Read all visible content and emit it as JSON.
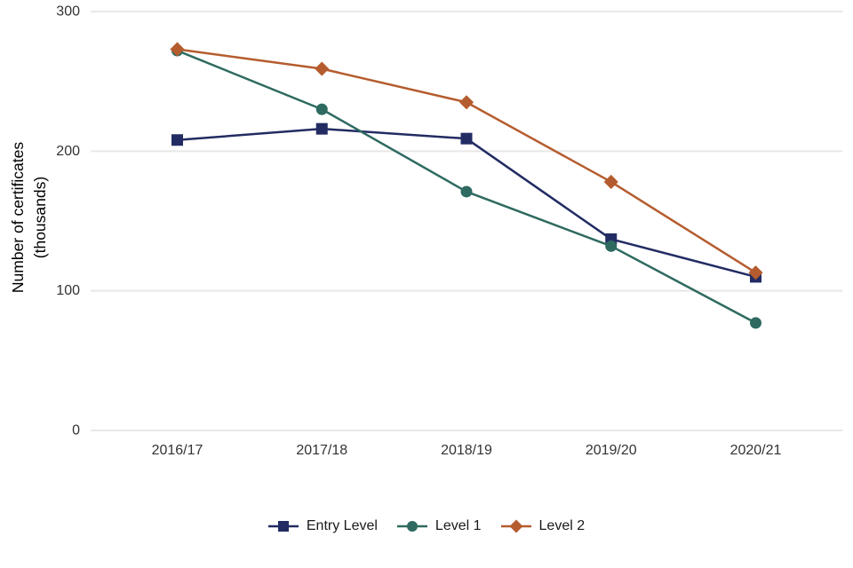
{
  "chart_data": {
    "type": "line",
    "title": "",
    "xlabel": "",
    "ylabel_line1": "Number of certificates",
    "ylabel_line2": "(thousands)",
    "categories": [
      "2016/17",
      "2017/18",
      "2018/19",
      "2019/20",
      "2020/21"
    ],
    "series": [
      {
        "name": "Entry Level",
        "marker": "square",
        "color": "#222c63",
        "values": [
          208,
          216,
          209,
          137,
          110
        ]
      },
      {
        "name": "Level 1",
        "marker": "circle",
        "color": "#2e6a60",
        "values": [
          272,
          230,
          171,
          132,
          77
        ]
      },
      {
        "name": "Level 2",
        "marker": "diamond",
        "color": "#b55c2e",
        "values": [
          273,
          259,
          235,
          178,
          113
        ]
      }
    ],
    "ylim": [
      0,
      300
    ],
    "yticks": [
      0,
      100,
      200,
      300
    ],
    "grid": "horizontal-only",
    "grid_color": "#e8e8e8",
    "tick_label_color": "#333333",
    "legend_position": "bottom-center"
  }
}
